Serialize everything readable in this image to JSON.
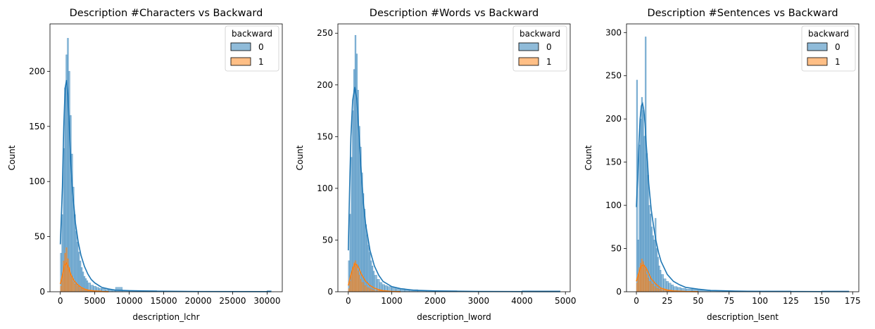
{
  "chart_data": [
    {
      "type": "histogram",
      "title": "Description #Characters vs Backward",
      "xlabel": "description_lchr",
      "ylabel": "Count",
      "xlim": [
        -1500,
        32200
      ],
      "ylim": [
        0,
        243
      ],
      "xticks": [
        0,
        5000,
        10000,
        15000,
        20000,
        25000,
        30000
      ],
      "yticks": [
        0,
        50,
        100,
        150,
        200
      ],
      "legend": {
        "title": "backward",
        "position": "top-right"
      },
      "series": [
        {
          "name": "0",
          "color": "#1f77b4",
          "bin_edges": [
            0,
            200,
            400,
            600,
            800,
            1000,
            1200,
            1400,
            1600,
            1800,
            2000,
            2200,
            2400,
            2600,
            2800,
            3000,
            3200,
            3400,
            3600,
            3800,
            4000,
            4400,
            4800,
            5200,
            5600,
            6000,
            6500,
            7000,
            7500,
            8000,
            9000,
            10000,
            12000,
            14000,
            17000,
            20000,
            24000,
            27000,
            30000,
            30600
          ],
          "counts": [
            35,
            70,
            130,
            185,
            215,
            230,
            200,
            160,
            125,
            95,
            70,
            55,
            45,
            36,
            28,
            22,
            18,
            14,
            12,
            10,
            8,
            6,
            5,
            4,
            3,
            3,
            2,
            2,
            1,
            4,
            1,
            1,
            1,
            0,
            0,
            0,
            0,
            0,
            1
          ],
          "kde_x": [
            0,
            300,
            500,
            700,
            900,
            1100,
            1300,
            1500,
            1800,
            2200,
            2600,
            3000,
            3500,
            4000,
            4500,
            5000,
            6000,
            7000,
            8000,
            10000,
            14000,
            20000,
            30600
          ],
          "kde_y": [
            43,
            95,
            150,
            185,
            192,
            178,
            150,
            120,
            90,
            62,
            45,
            33,
            23,
            16,
            11,
            8,
            4,
            2.5,
            1.5,
            1,
            0.5,
            0.2,
            0.1
          ]
        },
        {
          "name": "1",
          "color": "#ff7f0e",
          "bin_edges": [
            0,
            200,
            400,
            600,
            800,
            1000,
            1200,
            1400,
            1600,
            1800,
            2000,
            2400,
            2800,
            3200,
            3600,
            4000,
            5000,
            6000
          ],
          "counts": [
            5,
            14,
            28,
            35,
            40,
            30,
            22,
            16,
            12,
            9,
            7,
            5,
            3,
            2,
            2,
            1,
            1
          ],
          "kde_x": [
            0,
            300,
            600,
            900,
            1200,
            1500,
            2000,
            2500,
            3000,
            3500,
            4000,
            5000,
            6000,
            7000
          ],
          "kde_y": [
            7,
            15,
            24,
            26,
            22,
            16,
            10,
            6.5,
            4,
            2.5,
            1.5,
            0.6,
            0.2,
            0.05
          ]
        }
      ]
    },
    {
      "type": "histogram",
      "title": "Description #Words vs Backward",
      "xlabel": "description_lword",
      "ylabel": "Count",
      "xlim": [
        -240,
        5110
      ],
      "ylim": [
        0,
        259
      ],
      "xticks": [
        0,
        1000,
        2000,
        3000,
        4000,
        5000
      ],
      "yticks": [
        0,
        50,
        100,
        150,
        200,
        250
      ],
      "legend": {
        "title": "backward",
        "position": "top-right"
      },
      "series": [
        {
          "name": "0",
          "color": "#1f77b4",
          "bin_edges": [
            0,
            30,
            60,
            90,
            120,
            150,
            180,
            210,
            240,
            270,
            300,
            330,
            360,
            390,
            420,
            450,
            480,
            510,
            540,
            570,
            600,
            660,
            720,
            780,
            840,
            900,
            1000,
            1100,
            1200,
            1300,
            1400,
            1600,
            1800,
            2000,
            2500,
            3000,
            4000,
            4880
          ],
          "counts": [
            30,
            75,
            130,
            175,
            215,
            248,
            230,
            195,
            160,
            140,
            115,
            95,
            80,
            65,
            55,
            45,
            38,
            30,
            25,
            20,
            16,
            12,
            9,
            7,
            6,
            5,
            4,
            3,
            3,
            2,
            2,
            1,
            1,
            1,
            0,
            0,
            1
          ],
          "kde_x": [
            0,
            30,
            60,
            100,
            150,
            200,
            250,
            300,
            350,
            400,
            500,
            600,
            700,
            800,
            1000,
            1200,
            1500,
            2000,
            3000,
            4880
          ],
          "kde_y": [
            40,
            100,
            150,
            185,
            198,
            185,
            150,
            115,
            85,
            65,
            40,
            25,
            16,
            10,
            5,
            3,
            1.5,
            0.8,
            0.3,
            0.1
          ]
        },
        {
          "name": "1",
          "color": "#ff7f0e",
          "bin_edges": [
            0,
            30,
            60,
            90,
            120,
            150,
            180,
            210,
            240,
            270,
            300,
            360,
            420,
            480,
            540,
            600,
            700,
            800
          ],
          "counts": [
            3,
            10,
            18,
            24,
            28,
            30,
            26,
            20,
            16,
            12,
            9,
            6,
            4,
            3,
            2,
            1,
            1
          ],
          "kde_x": [
            0,
            50,
            100,
            150,
            200,
            250,
            300,
            400,
            500,
            600,
            700,
            800,
            1000,
            1200
          ],
          "kde_y": [
            6,
            15,
            22,
            27,
            26,
            22,
            17,
            10,
            6,
            3.5,
            2,
            1,
            0.3,
            0.05
          ]
        }
      ]
    },
    {
      "type": "histogram",
      "title": "Description #Sentences vs Backward",
      "xlabel": "description_lsent",
      "ylabel": "Count",
      "xlim": [
        -8,
        180
      ],
      "ylim": [
        0,
        310
      ],
      "xticks": [
        0,
        25,
        50,
        75,
        100,
        125,
        150,
        175
      ],
      "yticks": [
        0,
        50,
        100,
        150,
        200,
        250,
        300
      ],
      "legend": {
        "title": "backward",
        "position": "top-right"
      },
      "series": [
        {
          "name": "0",
          "color": "#1f77b4",
          "bin_edges": [
            0,
            1,
            2,
            3,
            4,
            5,
            6,
            7,
            8,
            9,
            10,
            11,
            12,
            13,
            14,
            15,
            16,
            17,
            18,
            19,
            20,
            22,
            24,
            26,
            28,
            30,
            33,
            36,
            40,
            45,
            50,
            60,
            70,
            80,
            100,
            125,
            150,
            172
          ],
          "counts": [
            245,
            60,
            170,
            200,
            225,
            210,
            180,
            295,
            160,
            135,
            100,
            90,
            75,
            65,
            60,
            85,
            50,
            40,
            30,
            25,
            20,
            15,
            12,
            10,
            8,
            6,
            5,
            4,
            3,
            3,
            2,
            1,
            1,
            1,
            1,
            0,
            1
          ],
          "kde_x": [
            0,
            1,
            2,
            3,
            4,
            5,
            6,
            7,
            8,
            9,
            10,
            12,
            14,
            16,
            18,
            20,
            25,
            30,
            35,
            40,
            50,
            60,
            80,
            100,
            172
          ],
          "kde_y": [
            98,
            130,
            170,
            200,
            215,
            218,
            210,
            195,
            170,
            150,
            125,
            95,
            75,
            58,
            45,
            35,
            20,
            12,
            8,
            5,
            3,
            1.5,
            0.8,
            0.4,
            0.1
          ]
        },
        {
          "name": "1",
          "color": "#ff7f0e",
          "bin_edges": [
            0,
            1,
            2,
            3,
            4,
            5,
            6,
            7,
            8,
            9,
            10,
            12,
            14,
            16,
            18,
            20,
            25,
            30
          ],
          "counts": [
            10,
            20,
            28,
            33,
            38,
            35,
            30,
            26,
            20,
            16,
            12,
            9,
            6,
            4,
            3,
            2,
            1
          ],
          "kde_x": [
            0,
            2,
            4,
            6,
            8,
            10,
            12,
            15,
            18,
            20,
            25,
            30,
            40,
            50
          ],
          "kde_y": [
            12,
            22,
            30,
            31,
            27,
            21,
            15,
            10,
            6,
            4,
            2,
            1,
            0.3,
            0.05
          ]
        }
      ]
    }
  ]
}
